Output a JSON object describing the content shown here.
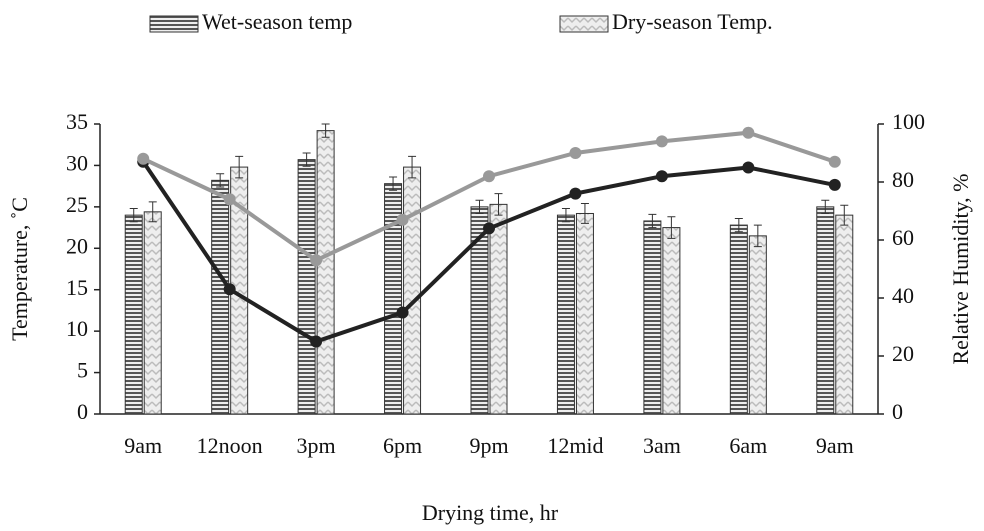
{
  "chart_data": {
    "type": "bar",
    "x_label": "Drying time, hr",
    "y_label": "Temperature, ˚C",
    "y2_label": "Relative Humidity, %",
    "categories": [
      "9am",
      "12noon",
      "3pm",
      "6pm",
      "9pm",
      "12mid",
      "3am",
      "6am",
      "9am"
    ],
    "series": [
      {
        "name": "Wet-season temp",
        "color": "#555555",
        "pattern": "stripes",
        "values": [
          24,
          28.2,
          30.7,
          27.8,
          25,
          24,
          23.3,
          22.8,
          25
        ],
        "errors": [
          0.8,
          0.8,
          0.8,
          0.8,
          0.8,
          0.8,
          0.8,
          0.8,
          0.8
        ]
      },
      {
        "name": "Dry-season Temp.",
        "color": "#bbbbbb",
        "pattern": "zigzag",
        "values": [
          24.4,
          29.8,
          34.2,
          29.8,
          25.3,
          24.2,
          22.5,
          21.5,
          24
        ],
        "errors": [
          1.2,
          1.3,
          0.8,
          1.3,
          1.3,
          1.2,
          1.3,
          1.3,
          1.2
        ]
      }
    ],
    "line_series": [
      {
        "color": "#222222",
        "axis": "y2",
        "values": [
          87,
          43,
          25,
          35,
          64,
          76,
          82,
          85,
          79
        ]
      },
      {
        "color": "#999999",
        "axis": "y2",
        "values": [
          88,
          74,
          53,
          67,
          82,
          90,
          94,
          97,
          87
        ]
      }
    ],
    "ylim": [
      0,
      35
    ],
    "yticks": [
      0,
      5,
      10,
      15,
      20,
      25,
      30,
      35
    ],
    "y2lim": [
      0,
      100
    ],
    "y2ticks": [
      0,
      20,
      40,
      60,
      80,
      100
    ],
    "legend": "top",
    "grid": false
  }
}
